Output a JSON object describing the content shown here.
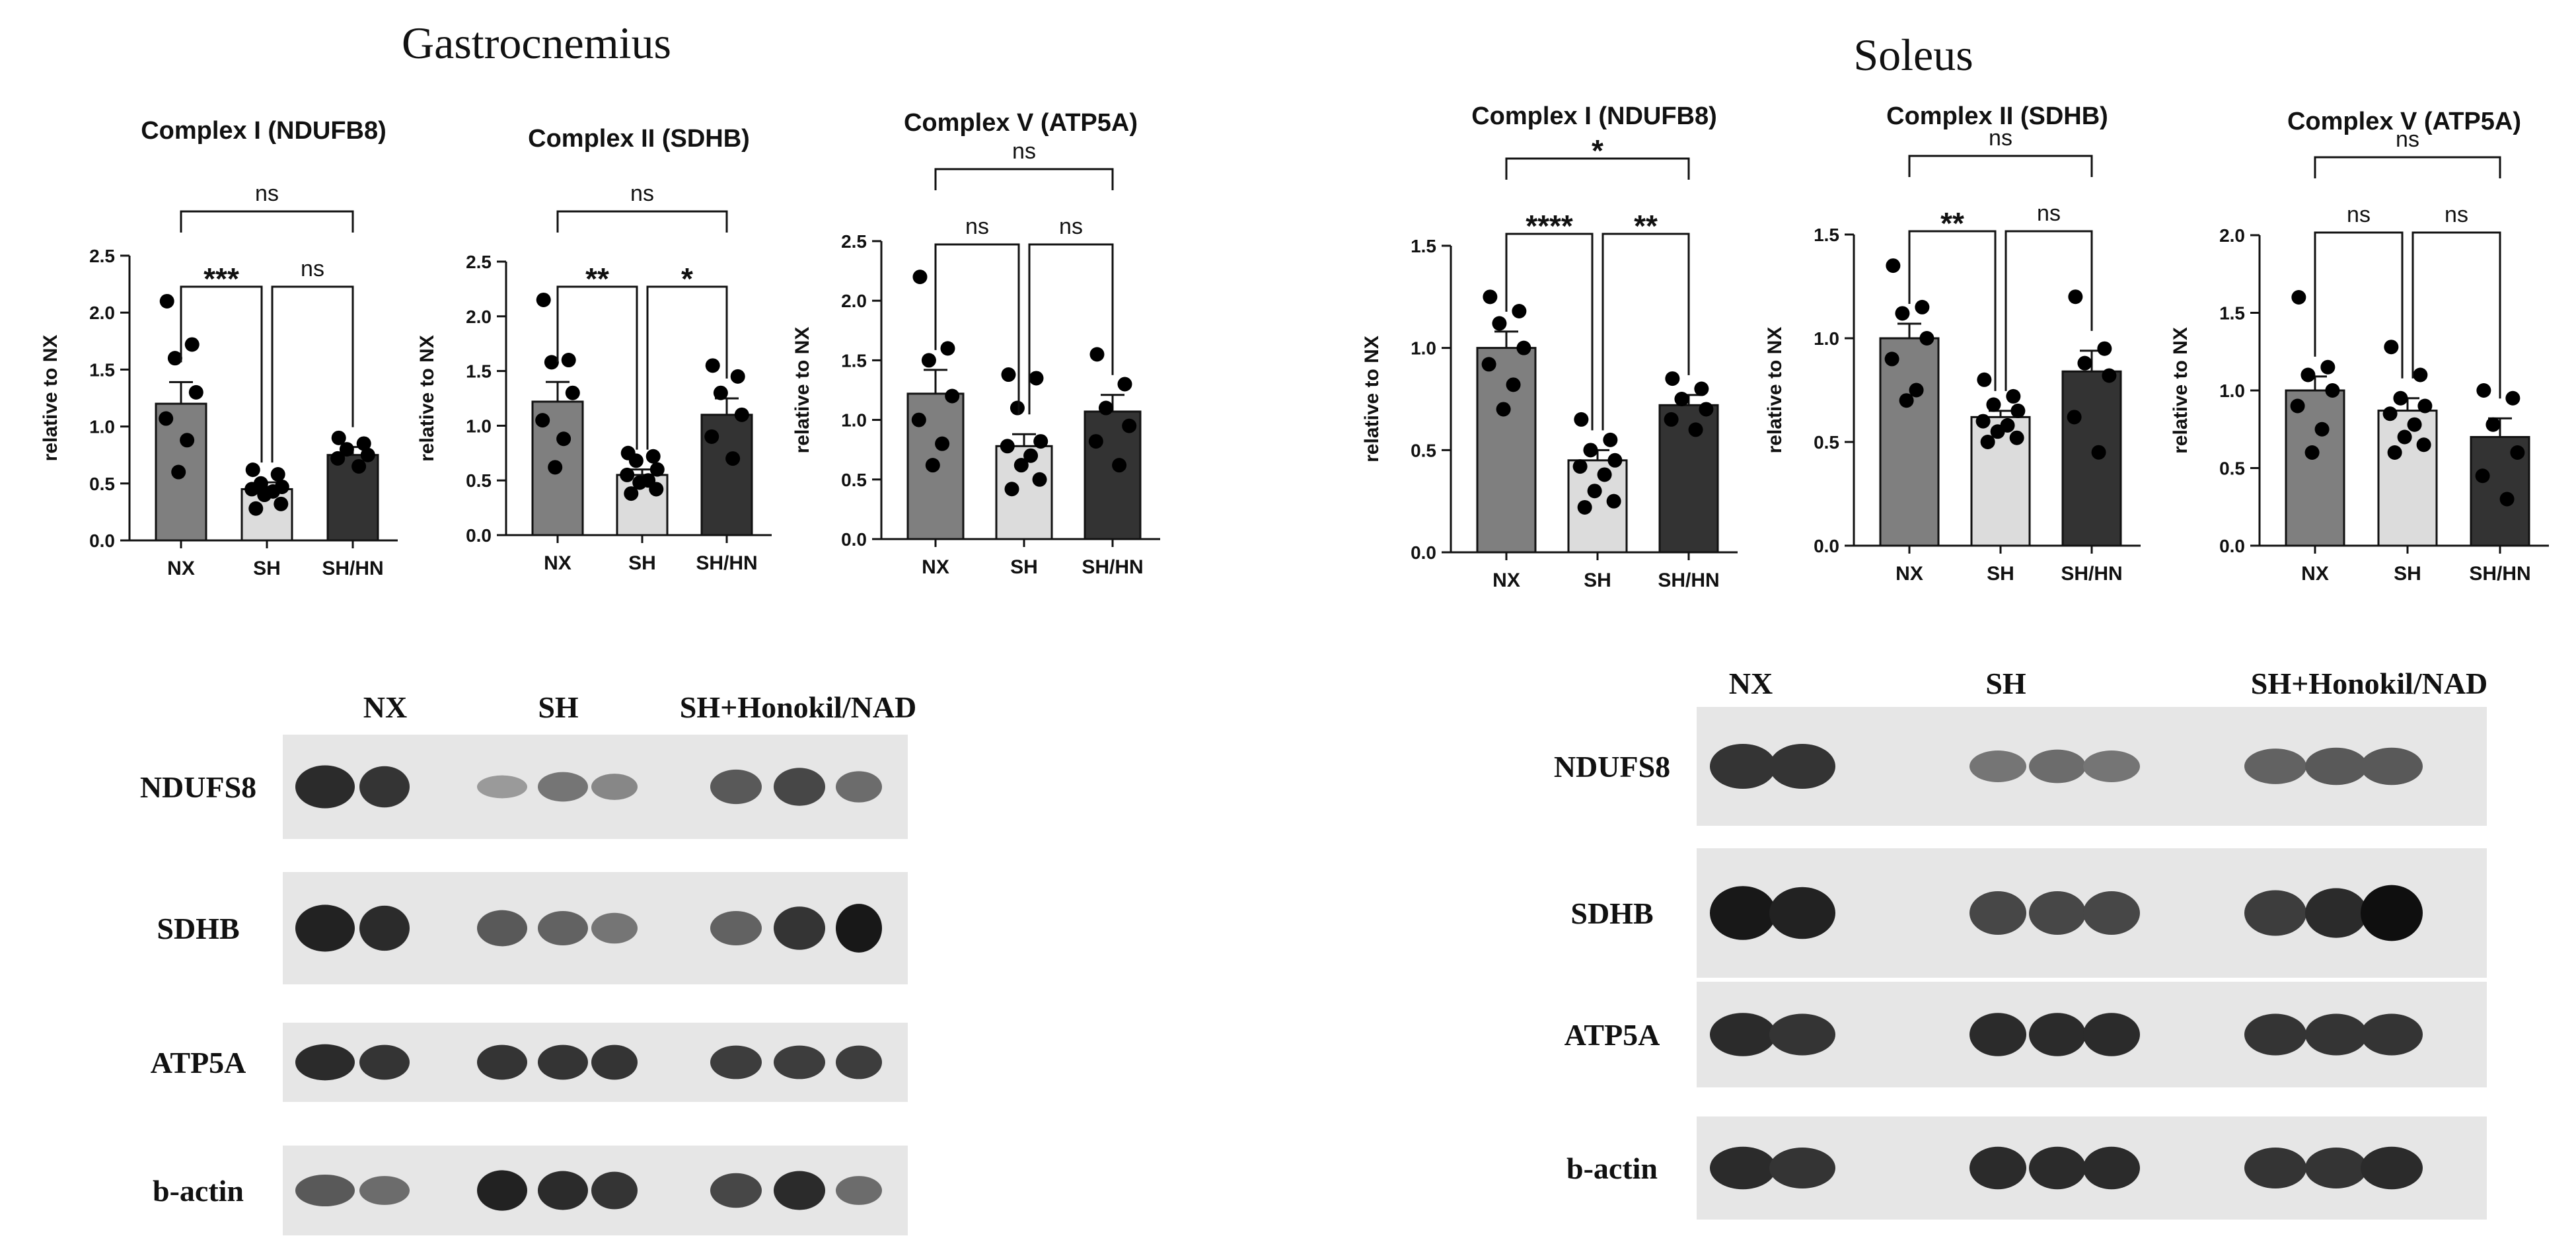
{
  "panels": [
    {
      "title": "Gastrocnemius"
    },
    {
      "title": "Soleus"
    }
  ],
  "colors": {
    "NX": "#7f7f7f",
    "SH": "#dcdcdc",
    "SH/HN": "#333333"
  },
  "chart_data": [
    {
      "type": "bar",
      "panel": "Gastrocnemius",
      "title": "Complex I (NDUFB8)",
      "ylabel": "relative to NX",
      "categories": [
        "NX",
        "SH",
        "SH/HN"
      ],
      "values": [
        1.2,
        0.45,
        0.75
      ],
      "errors": [
        0.19,
        0.06,
        0.07
      ],
      "ylim": [
        0,
        2.5
      ],
      "yticks": [
        "0.0",
        "0.5",
        "1.0",
        "1.5",
        "2.0",
        "2.5"
      ],
      "points": [
        [
          2.1,
          1.72,
          1.6,
          1.3,
          1.07,
          0.88,
          0.6
        ],
        [
          0.62,
          0.58,
          0.5,
          0.47,
          0.45,
          0.43,
          0.4,
          0.32,
          0.28
        ],
        [
          0.9,
          0.85,
          0.8,
          0.75,
          0.72,
          0.65
        ]
      ],
      "comparisons": [
        {
          "from": 0,
          "to": 1,
          "label": "***"
        },
        {
          "from": 1,
          "to": 2,
          "label": "ns"
        },
        {
          "from": 0,
          "to": 2,
          "label": "ns"
        }
      ]
    },
    {
      "type": "bar",
      "panel": "Gastrocnemius",
      "title": "Complex II (SDHB)",
      "ylabel": "relative to NX",
      "categories": [
        "NX",
        "SH",
        "SH/HN"
      ],
      "values": [
        1.22,
        0.55,
        1.1
      ],
      "errors": [
        0.18,
        0.05,
        0.15
      ],
      "ylim": [
        0,
        2.5
      ],
      "yticks": [
        "0.0",
        "0.5",
        "1.0",
        "1.5",
        "2.0",
        "2.5"
      ],
      "points": [
        [
          2.15,
          1.6,
          1.58,
          1.3,
          1.05,
          0.88,
          0.62
        ],
        [
          0.75,
          0.72,
          0.68,
          0.6,
          0.55,
          0.5,
          0.48,
          0.42,
          0.38
        ],
        [
          1.55,
          1.45,
          1.3,
          1.1,
          0.9,
          0.7
        ]
      ],
      "comparisons": [
        {
          "from": 0,
          "to": 1,
          "label": "**"
        },
        {
          "from": 1,
          "to": 2,
          "label": "*"
        },
        {
          "from": 0,
          "to": 2,
          "label": "ns"
        }
      ]
    },
    {
      "type": "bar",
      "panel": "Gastrocnemius",
      "title": "Complex V (ATP5A)",
      "ylabel": "relative to NX",
      "categories": [
        "NX",
        "SH",
        "SH/HN"
      ],
      "values": [
        1.22,
        0.78,
        1.07
      ],
      "errors": [
        0.2,
        0.1,
        0.14
      ],
      "ylim": [
        0,
        2.5
      ],
      "yticks": [
        "0.0",
        "0.5",
        "1.0",
        "1.5",
        "2.0",
        "2.5"
      ],
      "points": [
        [
          2.2,
          1.6,
          1.5,
          1.2,
          1.0,
          0.8,
          0.62
        ],
        [
          1.38,
          1.35,
          1.1,
          0.82,
          0.78,
          0.7,
          0.62,
          0.5,
          0.42
        ],
        [
          1.55,
          1.3,
          1.1,
          0.95,
          0.82,
          0.62
        ]
      ],
      "comparisons": [
        {
          "from": 0,
          "to": 1,
          "label": "ns"
        },
        {
          "from": 1,
          "to": 2,
          "label": "ns"
        },
        {
          "from": 0,
          "to": 2,
          "label": "ns"
        }
      ]
    },
    {
      "type": "bar",
      "panel": "Soleus",
      "title": "Complex I (NDUFB8)",
      "ylabel": "relative to NX",
      "categories": [
        "NX",
        "SH",
        "SH/HN"
      ],
      "values": [
        1.0,
        0.45,
        0.72
      ],
      "errors": [
        0.08,
        0.05,
        0.05
      ],
      "ylim": [
        0,
        1.5
      ],
      "yticks": [
        "0.0",
        "0.5",
        "1.0",
        "1.5"
      ],
      "points": [
        [
          1.25,
          1.18,
          1.12,
          1.0,
          0.92,
          0.82,
          0.7
        ],
        [
          0.65,
          0.55,
          0.5,
          0.45,
          0.42,
          0.38,
          0.3,
          0.25,
          0.22
        ],
        [
          0.85,
          0.8,
          0.75,
          0.7,
          0.65,
          0.6
        ]
      ],
      "comparisons": [
        {
          "from": 0,
          "to": 1,
          "label": "****"
        },
        {
          "from": 1,
          "to": 2,
          "label": "**"
        },
        {
          "from": 0,
          "to": 2,
          "label": "*"
        }
      ]
    },
    {
      "type": "bar",
      "panel": "Soleus",
      "title": "Complex II (SDHB)",
      "ylabel": "relative to NX",
      "categories": [
        "NX",
        "SH",
        "SH/HN"
      ],
      "values": [
        1.0,
        0.62,
        0.84
      ],
      "errors": [
        0.07,
        0.03,
        0.1
      ],
      "ylim": [
        0,
        1.5
      ],
      "yticks": [
        "0.0",
        "0.5",
        "1.0",
        "1.5"
      ],
      "points": [
        [
          1.35,
          1.15,
          1.12,
          1.0,
          0.9,
          0.75,
          0.7
        ],
        [
          0.8,
          0.72,
          0.68,
          0.65,
          0.6,
          0.58,
          0.55,
          0.52,
          0.5
        ],
        [
          1.2,
          0.95,
          0.88,
          0.82,
          0.62,
          0.45
        ]
      ],
      "comparisons": [
        {
          "from": 0,
          "to": 1,
          "label": "**"
        },
        {
          "from": 1,
          "to": 2,
          "label": "ns"
        },
        {
          "from": 0,
          "to": 2,
          "label": "ns"
        }
      ]
    },
    {
      "type": "bar",
      "panel": "Soleus",
      "title": "Complex V (ATP5A)",
      "ylabel": "relative to NX",
      "categories": [
        "NX",
        "SH",
        "SH/HN"
      ],
      "values": [
        1.0,
        0.87,
        0.7
      ],
      "errors": [
        0.09,
        0.08,
        0.12
      ],
      "ylim": [
        0,
        2.0
      ],
      "yticks": [
        "0.0",
        "0.5",
        "1.0",
        "1.5",
        "2.0"
      ],
      "points": [
        [
          1.6,
          1.15,
          1.1,
          1.0,
          0.9,
          0.75,
          0.6
        ],
        [
          1.28,
          1.1,
          0.95,
          0.9,
          0.85,
          0.78,
          0.7,
          0.65,
          0.6
        ],
        [
          1.0,
          0.95,
          0.78,
          0.6,
          0.45,
          0.3
        ]
      ],
      "comparisons": [
        {
          "from": 0,
          "to": 1,
          "label": "ns"
        },
        {
          "from": 1,
          "to": 2,
          "label": "ns"
        },
        {
          "from": 0,
          "to": 2,
          "label": "ns"
        }
      ]
    }
  ],
  "blots": [
    {
      "panel": "Gastrocnemius",
      "lane_labels": [
        "NX",
        "SH",
        "SH+Honokil/NAD"
      ],
      "rows": [
        {
          "label": "NDUFS8",
          "intensity": [
            0.85,
            0.8,
            0.25,
            0.45,
            0.35,
            0.6,
            0.7,
            0.5
          ]
        },
        {
          "label": "SDHB",
          "intensity": [
            0.9,
            0.85,
            0.6,
            0.55,
            0.45,
            0.55,
            0.8,
            0.95
          ]
        },
        {
          "label": "ATP5A",
          "intensity": [
            0.85,
            0.8,
            0.8,
            0.8,
            0.8,
            0.75,
            0.75,
            0.75
          ]
        },
        {
          "label": "b-actin",
          "intensity": [
            0.6,
            0.5,
            0.9,
            0.85,
            0.8,
            0.7,
            0.85,
            0.5
          ]
        }
      ]
    },
    {
      "panel": "Soleus",
      "lane_labels": [
        "NX",
        "SH",
        "SH+Honokil/NAD"
      ],
      "rows": [
        {
          "label": "NDUFS8",
          "intensity": [
            0.8,
            0.8,
            0.45,
            0.5,
            0.45,
            0.55,
            0.6,
            0.6
          ]
        },
        {
          "label": "SDHB",
          "intensity": [
            0.95,
            0.9,
            0.7,
            0.7,
            0.7,
            0.75,
            0.85,
            1.0
          ]
        },
        {
          "label": "ATP5A",
          "intensity": [
            0.85,
            0.8,
            0.85,
            0.85,
            0.85,
            0.8,
            0.8,
            0.8
          ]
        },
        {
          "label": "b-actin",
          "intensity": [
            0.85,
            0.8,
            0.85,
            0.85,
            0.85,
            0.8,
            0.8,
            0.85
          ]
        }
      ]
    }
  ]
}
